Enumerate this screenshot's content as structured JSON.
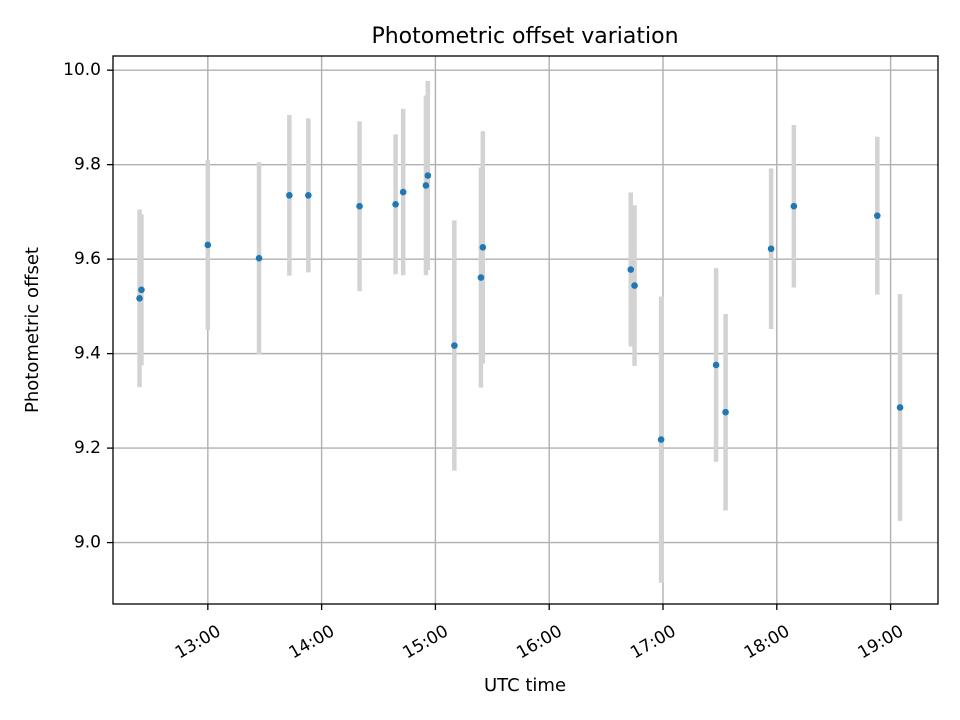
{
  "chart_data": {
    "type": "scatter",
    "title": "Photometric offset variation",
    "xlabel": "UTC time",
    "ylabel": "Photometric offset",
    "x_unit": "UTC",
    "xlim": [
      "12:10",
      "19:25"
    ],
    "ylim": [
      8.87,
      10.03
    ],
    "x_ticks": [
      "13:00",
      "14:00",
      "15:00",
      "16:00",
      "17:00",
      "18:00",
      "19:00"
    ],
    "y_ticks": [
      "9.0",
      "9.2",
      "9.4",
      "9.6",
      "9.8",
      "10.0"
    ],
    "grid": true,
    "legend": "none",
    "colors": {
      "points": "#1f77b4",
      "error_bars": "#d3d3d3",
      "grid": "#b0b0b0"
    },
    "series": [
      {
        "points": [
          {
            "x": "12:24",
            "y": 9.517,
            "err": 0.188
          },
          {
            "x": "12:25",
            "y": 9.535,
            "err": 0.16
          },
          {
            "x": "13:00",
            "y": 9.63,
            "err": 0.18
          },
          {
            "x": "13:27",
            "y": 9.602,
            "err": 0.203
          },
          {
            "x": "13:43",
            "y": 9.735,
            "err": 0.17
          },
          {
            "x": "13:53",
            "y": 9.735,
            "err": 0.163
          },
          {
            "x": "14:20",
            "y": 9.712,
            "err": 0.18
          },
          {
            "x": "14:39",
            "y": 9.716,
            "err": 0.148
          },
          {
            "x": "14:43",
            "y": 9.742,
            "err": 0.176
          },
          {
            "x": "14:55",
            "y": 9.756,
            "err": 0.19
          },
          {
            "x": "14:56",
            "y": 9.777,
            "err": 0.2
          },
          {
            "x": "15:10",
            "y": 9.417,
            "err": 0.265
          },
          {
            "x": "15:24",
            "y": 9.561,
            "err": 0.233
          },
          {
            "x": "15:25",
            "y": 9.625,
            "err": 0.246
          },
          {
            "x": "16:43",
            "y": 9.578,
            "err": 0.163
          },
          {
            "x": "16:45",
            "y": 9.544,
            "err": 0.17
          },
          {
            "x": "16:59",
            "y": 9.218,
            "err": 0.303
          },
          {
            "x": "17:28",
            "y": 9.376,
            "err": 0.205
          },
          {
            "x": "17:33",
            "y": 9.276,
            "err": 0.208
          },
          {
            "x": "17:57",
            "y": 9.622,
            "err": 0.17
          },
          {
            "x": "18:09",
            "y": 9.712,
            "err": 0.172
          },
          {
            "x": "18:53",
            "y": 9.692,
            "err": 0.167
          },
          {
            "x": "19:05",
            "y": 9.286,
            "err": 0.24
          }
        ]
      }
    ]
  }
}
